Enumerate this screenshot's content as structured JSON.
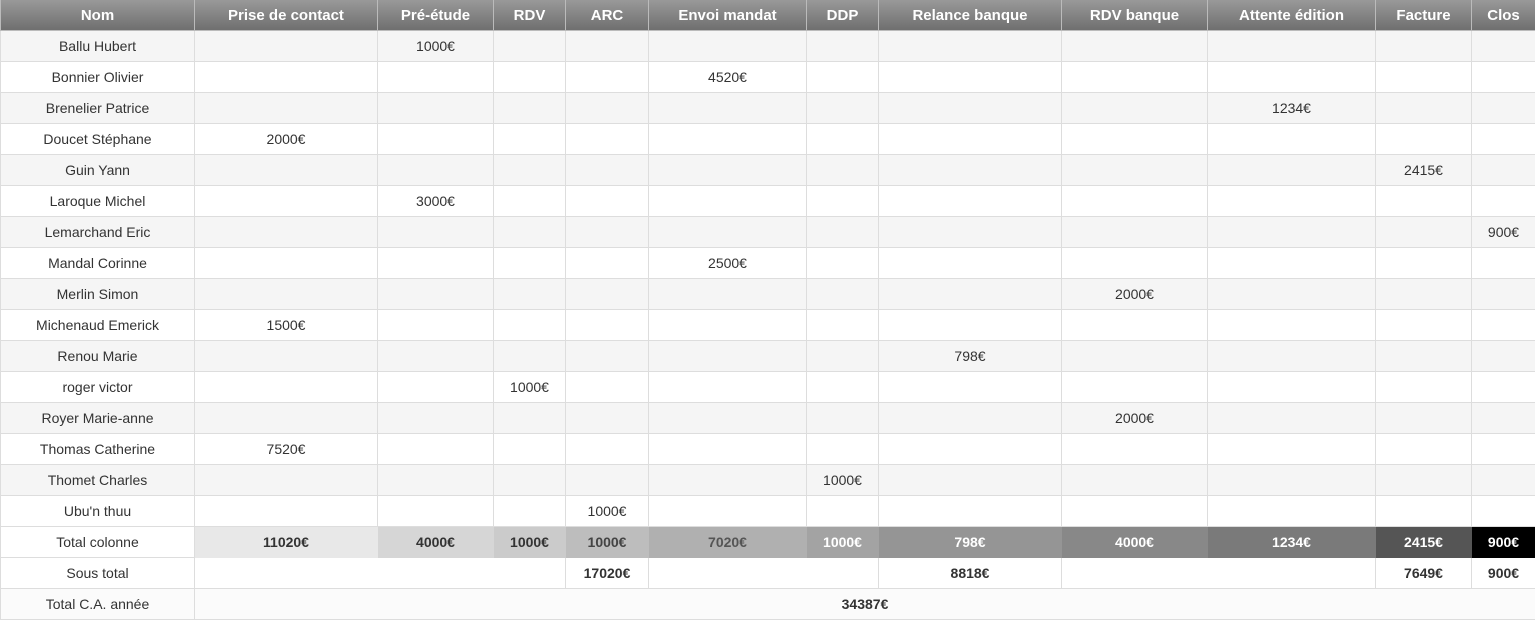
{
  "columns": [
    "Nom",
    "Prise de contact",
    "Pré-étude",
    "RDV",
    "ARC",
    "Envoi mandat",
    "DDP",
    "Relance banque",
    "RDV banque",
    "Attente édition",
    "Facture",
    "Clos"
  ],
  "rows": [
    {
      "name": "Ballu Hubert",
      "cells": [
        "",
        "1000€",
        "",
        "",
        "",
        "",
        "",
        "",
        "",
        "",
        ""
      ]
    },
    {
      "name": "Bonnier Olivier",
      "cells": [
        "",
        "",
        "",
        "",
        "4520€",
        "",
        "",
        "",
        "",
        "",
        ""
      ]
    },
    {
      "name": "Brenelier Patrice",
      "cells": [
        "",
        "",
        "",
        "",
        "",
        "",
        "",
        "",
        "1234€",
        "",
        ""
      ]
    },
    {
      "name": "Doucet Stéphane",
      "cells": [
        "2000€",
        "",
        "",
        "",
        "",
        "",
        "",
        "",
        "",
        "",
        ""
      ]
    },
    {
      "name": "Guin Yann",
      "cells": [
        "",
        "",
        "",
        "",
        "",
        "",
        "",
        "",
        "",
        "2415€",
        ""
      ]
    },
    {
      "name": "Laroque Michel",
      "cells": [
        "",
        "3000€",
        "",
        "",
        "",
        "",
        "",
        "",
        "",
        "",
        ""
      ]
    },
    {
      "name": "Lemarchand Eric",
      "cells": [
        "",
        "",
        "",
        "",
        "",
        "",
        "",
        "",
        "",
        "",
        "900€"
      ]
    },
    {
      "name": "Mandal Corinne",
      "cells": [
        "",
        "",
        "",
        "",
        "2500€",
        "",
        "",
        "",
        "",
        "",
        ""
      ]
    },
    {
      "name": "Merlin Simon",
      "cells": [
        "",
        "",
        "",
        "",
        "",
        "",
        "",
        "2000€",
        "",
        "",
        ""
      ]
    },
    {
      "name": "Michenaud Emerick",
      "cells": [
        "1500€",
        "",
        "",
        "",
        "",
        "",
        "",
        "",
        "",
        "",
        ""
      ]
    },
    {
      "name": "Renou Marie",
      "cells": [
        "",
        "",
        "",
        "",
        "",
        "",
        "798€",
        "",
        "",
        "",
        ""
      ]
    },
    {
      "name": "roger victor",
      "cells": [
        "",
        "",
        "1000€",
        "",
        "",
        "",
        "",
        "",
        "",
        "",
        ""
      ]
    },
    {
      "name": "Royer Marie-anne",
      "cells": [
        "",
        "",
        "",
        "",
        "",
        "",
        "",
        "2000€",
        "",
        "",
        ""
      ]
    },
    {
      "name": "Thomas Catherine",
      "cells": [
        "7520€",
        "",
        "",
        "",
        "",
        "",
        "",
        "",
        "",
        "",
        ""
      ]
    },
    {
      "name": "Thomet Charles",
      "cells": [
        "",
        "",
        "",
        "",
        "",
        "1000€",
        "",
        "",
        "",
        "",
        ""
      ]
    },
    {
      "name": "Ubu'n thuu",
      "cells": [
        "",
        "",
        "",
        "1000€",
        "",
        "",
        "",
        "",
        "",
        "",
        ""
      ]
    }
  ],
  "total_row": {
    "label": "Total colonne",
    "values": [
      "11020€",
      "4000€",
      "1000€",
      "1000€",
      "7020€",
      "1000€",
      "798€",
      "4000€",
      "1234€",
      "2415€",
      "900€"
    ],
    "bg_colors": [
      "#e8e8e8",
      "#d6d6d6",
      "#cbcbcb",
      "#bdbdbd",
      "#b0b0b0",
      "#a3a3a3",
      "#959595",
      "#888888",
      "#7a7a7a",
      "#555555",
      "#000000"
    ],
    "text_colors": [
      "#333333",
      "#333333",
      "#333333",
      "#444444",
      "#555555",
      "#ffffff",
      "#ffffff",
      "#ffffff",
      "#ffffff",
      "#ffffff",
      "#ffffff"
    ]
  },
  "subtotal_row": {
    "label": "Sous total",
    "groups": [
      {
        "span": 4,
        "value": "17020€"
      },
      {
        "span": 3,
        "value": "8818€"
      },
      {
        "span": 3,
        "value": "7649€"
      },
      {
        "span": 1,
        "value": "900€"
      }
    ]
  },
  "year_row": {
    "label": "Total C.A. année",
    "value": "34387€"
  },
  "colors": {
    "header_top": "#999999",
    "header_bottom": "#6f6f6f",
    "stripe": "#f5f5f5",
    "border": "#dddddd"
  }
}
